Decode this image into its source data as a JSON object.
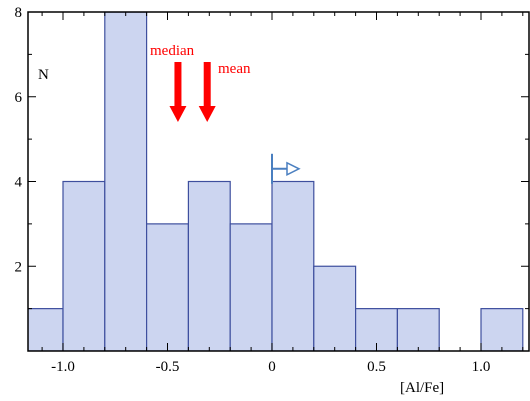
{
  "chart_data": {
    "type": "bar",
    "histogram": true,
    "xlabel": "[Al/Fe]",
    "ylabel": "N",
    "xlim": [
      -1.15,
      1.2
    ],
    "ylim": [
      0,
      8
    ],
    "grid": false,
    "bin_width": 0.2,
    "bins": [
      {
        "start": -1.2,
        "end": -1.0,
        "value": 1
      },
      {
        "start": -1.0,
        "end": -0.8,
        "value": 4
      },
      {
        "start": -0.8,
        "end": -0.6,
        "value": 8
      },
      {
        "start": -0.6,
        "end": -0.4,
        "value": 3
      },
      {
        "start": -0.4,
        "end": -0.2,
        "value": 4
      },
      {
        "start": -0.2,
        "end": 0.0,
        "value": 3
      },
      {
        "start": 0.0,
        "end": 0.2,
        "value": 4
      },
      {
        "start": 0.2,
        "end": 0.4,
        "value": 2
      },
      {
        "start": 0.4,
        "end": 0.6,
        "value": 1
      },
      {
        "start": 0.6,
        "end": 0.8,
        "value": 1
      },
      {
        "start": 0.8,
        "end": 1.0,
        "value": 0
      },
      {
        "start": 1.0,
        "end": 1.2,
        "value": 1
      }
    ],
    "x_ticks": [
      {
        "value": -1.0,
        "label": "-1.0"
      },
      {
        "value": -0.5,
        "label": "-0.5"
      },
      {
        "value": 0.0,
        "label": "0"
      },
      {
        "value": 0.5,
        "label": "0.5"
      },
      {
        "value": 1.0,
        "label": "1.0"
      }
    ],
    "y_ticks": [
      {
        "value": 2,
        "label": "2"
      },
      {
        "value": 4,
        "label": "4"
      },
      {
        "value": 6,
        "label": "6"
      },
      {
        "value": 8,
        "label": "8"
      }
    ],
    "annotations": [
      {
        "label": "median",
        "x": -0.45,
        "color": "#ff0000"
      },
      {
        "label": "mean",
        "x": -0.31,
        "color": "#ff0000"
      }
    ],
    "limit_marker": {
      "x": 0.0,
      "y": 4.3,
      "direction": "right",
      "color": "#4a7fc0"
    },
    "colors": {
      "bar_fill": "#ccd5f0",
      "bar_stroke": "#3e4f9e",
      "arrow": "#ff0000"
    }
  }
}
